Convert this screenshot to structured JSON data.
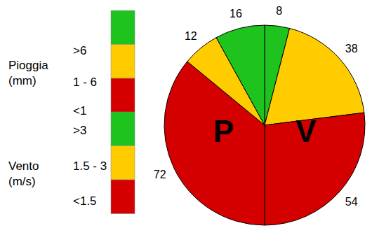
{
  "chart_data": {
    "type": "pie",
    "series": [
      {
        "name": "Pioggia (mm)",
        "label": "P",
        "categories": [
          ">6",
          "1 - 6",
          "<1"
        ],
        "values": [
          16,
          12,
          72
        ],
        "colors": [
          "#1ec31e",
          "#ffcc00",
          "#d40000"
        ]
      },
      {
        "name": "Vento (m/s)",
        "label": "V",
        "categories": [
          ">3",
          "1.5 - 3",
          "<1.5"
        ],
        "values": [
          8,
          38,
          54
        ],
        "colors": [
          "#1ec31e",
          "#ffcc00",
          "#d40000"
        ]
      }
    ],
    "data_labels": true
  }
}
